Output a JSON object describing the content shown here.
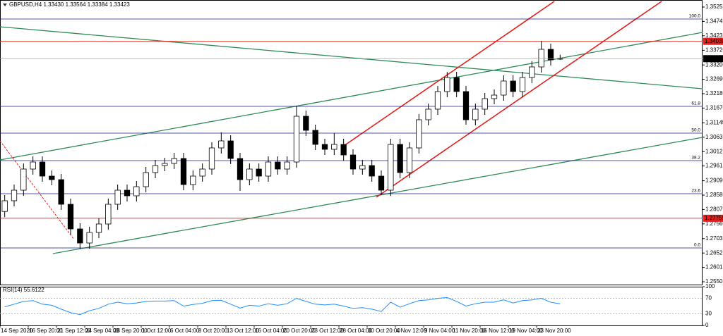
{
  "chart_data": {
    "type": "candlestick",
    "title": "GBPUSD,H4 1.33430 1.33564 1.33384 1.33423",
    "categories": [
      "14 Sep 2020",
      null,
      null,
      "16 Sep 20:00",
      null,
      null,
      "21 Sep 12:00",
      null,
      null,
      "24 Sep 04:00",
      null,
      null,
      "28 Sep 20:00",
      null,
      null,
      "1 Oct 12:00",
      null,
      null,
      "6 Oct 04:00",
      null,
      null,
      "8 Oct 20:00",
      null,
      null,
      "13 Oct 12:00",
      null,
      null,
      "16 Oct 04:00",
      null,
      null,
      "20 Oct 20:00",
      null,
      null,
      "23 Oct 12:00",
      null,
      null,
      "28 Oct 04:00",
      null,
      null,
      "30 Oct 20:00",
      null,
      null,
      "4 Nov 12:00",
      null,
      null,
      "9 Nov 04:00",
      null,
      null,
      "11 Nov 20:00",
      null,
      null,
      "16 Nov 12:00",
      null,
      null,
      "19 Nov 04:00",
      null,
      null,
      "23 Nov 20:00",
      null,
      null
    ],
    "open": [
      1.28,
      1.2838,
      1.28755,
      1.29505,
      1.29755,
      1.29255,
      1.2913,
      1.28255,
      1.2738,
      1.2688,
      1.27255,
      1.27555,
      1.28255,
      1.28755,
      1.28555,
      1.2888,
      1.2938,
      1.2963,
      1.29705,
      1.2988,
      1.28955,
      1.29255,
      1.29505,
      1.30255,
      1.30505,
      1.2988,
      1.2913,
      1.29505,
      1.29255,
      1.29755,
      1.29505,
      1.29755,
      1.3138,
      1.3088,
      1.3038,
      1.30205,
      1.3038,
      1.30005,
      1.29505,
      1.2963,
      1.29255,
      1.28755,
      1.3038,
      1.2938,
      1.30255,
      1.31255,
      1.3163,
      1.32255,
      1.32755,
      1.32255,
      1.31255,
      1.3163,
      1.32005,
      1.3213,
      1.3263,
      1.32255,
      1.32755,
      1.3313,
      1.33755,
      1.3343
    ],
    "high": [
      1.2858,
      1.28955,
      1.29705,
      1.29955,
      1.29955,
      1.29455,
      1.2933,
      1.28455,
      1.2758,
      1.27455,
      1.27755,
      1.28455,
      1.28955,
      1.28955,
      1.2908,
      1.2958,
      1.2983,
      1.29905,
      1.3008,
      1.3008,
      1.29455,
      1.29705,
      1.30455,
      1.30805,
      1.30705,
      1.3008,
      1.29705,
      1.29705,
      1.29955,
      1.29955,
      1.29955,
      1.3175,
      1.3158,
      1.3108,
      1.3058,
      1.3078,
      1.3058,
      1.30205,
      1.2983,
      1.2983,
      1.29455,
      1.3058,
      1.3058,
      1.30455,
      1.31455,
      1.3183,
      1.32455,
      1.3295,
      1.32955,
      1.32455,
      1.3183,
      1.32205,
      1.3233,
      1.3283,
      1.3283,
      1.32955,
      1.3333,
      1.3405,
      1.33955,
      1.33564
    ],
    "low": [
      1.278,
      1.2818,
      1.28555,
      1.29305,
      1.29055,
      1.2893,
      1.28055,
      1.2718,
      1.2668,
      1.2668,
      1.27055,
      1.27355,
      1.28055,
      1.28355,
      1.28355,
      1.2868,
      1.2918,
      1.2943,
      1.29505,
      1.28755,
      1.28755,
      1.29055,
      1.29305,
      1.30055,
      1.2968,
      1.2873,
      1.2893,
      1.29055,
      1.29055,
      1.29305,
      1.29305,
      1.29555,
      1.3068,
      1.3018,
      1.30005,
      1.30005,
      1.29805,
      1.29305,
      1.29305,
      1.29055,
      1.2858,
      1.28555,
      1.2918,
      1.2918,
      1.30055,
      1.31055,
      1.3143,
      1.32055,
      1.32055,
      1.3108,
      1.31055,
      1.3143,
      1.31805,
      1.3193,
      1.32055,
      1.32055,
      1.32555,
      1.3293,
      1.3318,
      1.33384
    ],
    "close": [
      1.2838,
      1.28755,
      1.29505,
      1.29755,
      1.29255,
      1.2913,
      1.28255,
      1.2738,
      1.2688,
      1.27255,
      1.27555,
      1.28255,
      1.28755,
      1.28555,
      1.2888,
      1.2938,
      1.2963,
      1.29705,
      1.2988,
      1.28955,
      1.29255,
      1.29505,
      1.30255,
      1.30505,
      1.2988,
      1.2913,
      1.29505,
      1.29255,
      1.29755,
      1.29505,
      1.29755,
      1.3138,
      1.3088,
      1.3038,
      1.30205,
      1.3038,
      1.30005,
      1.29505,
      1.2963,
      1.29255,
      1.28755,
      1.3038,
      1.2938,
      1.30255,
      1.31255,
      1.3163,
      1.32255,
      1.32755,
      1.32255,
      1.31255,
      1.3163,
      1.32005,
      1.3213,
      1.3263,
      1.32255,
      1.32755,
      1.3313,
      1.33755,
      1.3338,
      1.33423
    ],
    "ylim": [
      1.2538,
      1.35505
    ],
    "yticks": [
      1.35255,
      1.34745,
      1.34235,
      {
        "value": 1.3372,
        "label": "1.33720"
      },
      {
        "value": 1.332,
        "label": "1.33200"
      },
      {
        "value": 1.3269,
        "label": "1.32690"
      },
      {
        "value": 1.3218,
        "label": "1.32180"
      },
      {
        "value": 1.3167,
        "label": "1.31670"
      },
      1.31145,
      1.30635,
      1.30125,
      1.29615,
      {
        "value": 1.2909,
        "label": "1.29090"
      },
      {
        "value": 1.2858,
        "label": "1.28580"
      },
      {
        "value": 1.2807,
        "label": "1.28070"
      },
      {
        "value": 1.2756,
        "label": "1.27560"
      },
      1.27035,
      1.26525,
      1.26015,
      1.25505
    ],
    "hlines": [
      {
        "value": 1.34038,
        "color": "#e0201c"
      },
      {
        "value": 1.27759,
        "color": "#e0201c"
      }
    ],
    "fibo": {
      "color": "#1a1a8c",
      "levels": [
        {
          "label": "100.0",
          "value": 1.3483
        },
        {
          "label": "61.8",
          "value": 1.3173
        },
        {
          "label": "50.0",
          "value": 1.3078
        },
        {
          "label": "38.2",
          "value": 1.29805
        },
        {
          "label": "23.6",
          "value": 1.2863
        },
        {
          "label": "0.0",
          "value": 1.26705
        }
      ]
    },
    "rsi": {
      "name": "RSI(14)",
      "color": "#1e90ff",
      "ylim": [
        0,
        100
      ],
      "yticks": [
        0,
        30,
        70,
        100
      ],
      "values": [
        48,
        55,
        62,
        64,
        55,
        52,
        42,
        33,
        28,
        38,
        44,
        55,
        60,
        56,
        58,
        62,
        63,
        63,
        64,
        50,
        54,
        57,
        64,
        65,
        55,
        45,
        52,
        50,
        56,
        52,
        56,
        70,
        62,
        55,
        53,
        55,
        50,
        44,
        46,
        42,
        36,
        60,
        47,
        56,
        64,
        66,
        70,
        72,
        62,
        50,
        56,
        60,
        60,
        66,
        58,
        64,
        66,
        70,
        60,
        55.6122
      ]
    }
  }
}
